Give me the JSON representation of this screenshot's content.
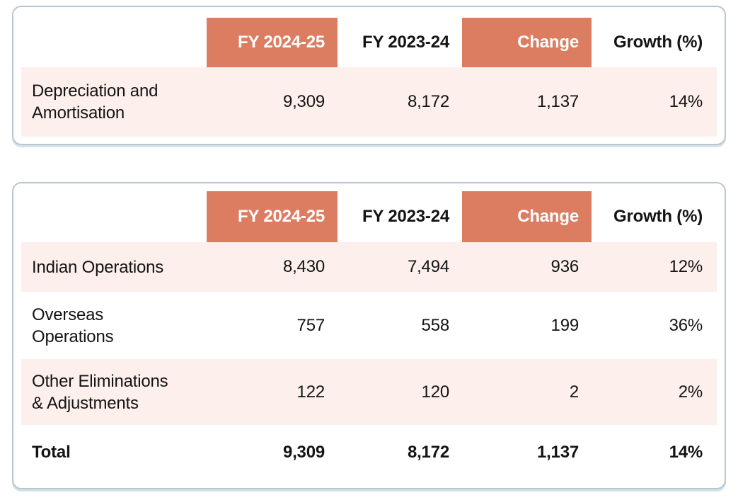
{
  "colors": {
    "accent": "#DC7D62",
    "row_tint": "#FCEFEC",
    "card_border": "#B7C8D2",
    "card_shadow": "#D8E1E8",
    "text": "#141414",
    "header_text_on_accent": "#FFFFFF",
    "background": "#FFFFFF"
  },
  "tables": [
    {
      "headers": {
        "blank": "",
        "fy_2024_25": "FY 2024-25",
        "fy_2023_24": "FY 2023-24",
        "change": "Change",
        "growth": "Growth (%)"
      },
      "rows": [
        {
          "label": "Depreciation and\nAmortisation",
          "fy_2024_25": "9,309",
          "fy_2023_24": "8,172",
          "change": "1,137",
          "growth": "14%"
        }
      ]
    },
    {
      "headers": {
        "blank": "",
        "fy_2024_25": "FY 2024-25",
        "fy_2023_24": "FY 2023-24",
        "change": "Change",
        "growth": "Growth (%)"
      },
      "rows": [
        {
          "label": "Indian Operations",
          "fy_2024_25": "8,430",
          "fy_2023_24": "7,494",
          "change": "936",
          "growth": "12%"
        },
        {
          "label": "Overseas\nOperations",
          "fy_2024_25": "757",
          "fy_2023_24": "558",
          "change": "199",
          "growth": "36%"
        },
        {
          "label": "Other Eliminations\n& Adjustments",
          "fy_2024_25": "122",
          "fy_2023_24": "120",
          "change": "2",
          "growth": "2%"
        },
        {
          "label": "Total",
          "fy_2024_25": "9,309",
          "fy_2023_24": "8,172",
          "change": "1,137",
          "growth": "14%"
        }
      ]
    }
  ]
}
